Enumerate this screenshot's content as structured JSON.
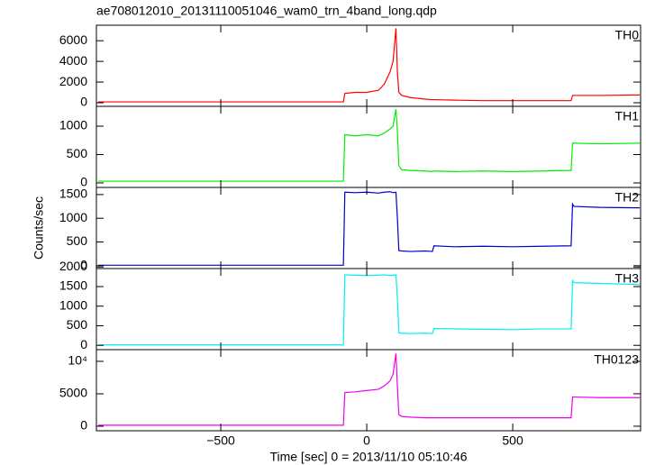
{
  "chart_data": [
    {
      "type": "line",
      "title": "ae708012010_20131110051046_wam0_trn_4band_long.qdp",
      "x": [
        -920,
        -80,
        -75,
        -40,
        0,
        40,
        60,
        80,
        90,
        100,
        105,
        110,
        120,
        150,
        200,
        225,
        230,
        300,
        400,
        500,
        600,
        700,
        705,
        710,
        800,
        935
      ],
      "series": [
        {
          "name": "TH0",
          "color": "#ff0000",
          "values": [
            80,
            80,
            900,
            1000,
            1000,
            1200,
            1800,
            3000,
            4000,
            7200,
            3000,
            1000,
            700,
            500,
            350,
            300,
            300,
            250,
            200,
            200,
            200,
            200,
            700,
            700,
            700,
            750
          ]
        }
      ],
      "xlim": [
        -926,
        938
      ],
      "ylim": [
        -350,
        7500
      ],
      "yticks": [
        0,
        2000,
        4000,
        6000
      ]
    },
    {
      "type": "line",
      "x": [
        -920,
        -80,
        -75,
        -40,
        0,
        40,
        60,
        80,
        90,
        100,
        105,
        110,
        120,
        150,
        200,
        225,
        230,
        300,
        400,
        500,
        600,
        700,
        705,
        710,
        800,
        935
      ],
      "series": [
        {
          "name": "TH1",
          "color": "#00ee00",
          "values": [
            30,
            30,
            850,
            830,
            850,
            830,
            880,
            950,
            1000,
            1300,
            900,
            300,
            230,
            220,
            210,
            200,
            210,
            200,
            210,
            200,
            210,
            220,
            700,
            700,
            690,
            700
          ]
        }
      ],
      "xlim": [
        -926,
        938
      ],
      "ylim": [
        -80,
        1350
      ],
      "yticks": [
        0,
        500,
        1000
      ]
    },
    {
      "type": "line",
      "y_label": "Counts/sec",
      "x": [
        -920,
        -80,
        -75,
        -40,
        0,
        40,
        60,
        80,
        90,
        100,
        105,
        110,
        120,
        150,
        200,
        225,
        230,
        300,
        400,
        500,
        600,
        700,
        705,
        710,
        800,
        935
      ],
      "series": [
        {
          "name": "TH2",
          "color": "#0000cc",
          "values": [
            10,
            10,
            1550,
            1540,
            1550,
            1530,
            1550,
            1560,
            1540,
            1550,
            1000,
            320,
            310,
            300,
            310,
            300,
            420,
            400,
            410,
            400,
            410,
            420,
            1300,
            1250,
            1230,
            1220
          ]
        }
      ],
      "xlim": [
        -926,
        938
      ],
      "ylim": [
        -60,
        1650
      ],
      "yticks": [
        0,
        500,
        1000,
        1500
      ]
    },
    {
      "type": "line",
      "x": [
        -920,
        -80,
        -75,
        -40,
        0,
        40,
        60,
        80,
        90,
        100,
        105,
        110,
        120,
        150,
        200,
        225,
        230,
        300,
        400,
        500,
        600,
        700,
        705,
        710,
        800,
        935
      ],
      "series": [
        {
          "name": "TH3",
          "color": "#00eeee",
          "values": [
            10,
            10,
            1800,
            1790,
            1780,
            1790,
            1800,
            1780,
            1790,
            1800,
            1200,
            320,
            310,
            300,
            310,
            300,
            430,
            420,
            410,
            400,
            420,
            420,
            1650,
            1600,
            1580,
            1550
          ]
        }
      ],
      "xlim": [
        -926,
        938
      ],
      "ylim": [
        -110,
        1960
      ],
      "yticks": [
        0,
        500,
        1000,
        1500,
        2000
      ]
    },
    {
      "type": "line",
      "x_label": "Time [sec] 0 = 2013/11/10 05:10:46",
      "x": [
        -920,
        -80,
        -75,
        -40,
        0,
        40,
        60,
        80,
        90,
        100,
        105,
        110,
        120,
        150,
        200,
        225,
        230,
        300,
        400,
        500,
        600,
        700,
        705,
        710,
        800,
        935
      ],
      "series": [
        {
          "name": "TH0123",
          "color": "#ee00ee",
          "values": [
            150,
            150,
            5200,
            5300,
            5500,
            5700,
            6200,
            7000,
            8000,
            11200,
            6000,
            1800,
            1500,
            1400,
            1300,
            1300,
            1300,
            1300,
            1300,
            1300,
            1300,
            1300,
            4500,
            4500,
            4400,
            4400
          ]
        }
      ],
      "xlim": [
        -926,
        938
      ],
      "ylim": [
        -700,
        11800
      ],
      "yticks": [
        0,
        5000,
        {
          "value": 10000,
          "label": "10⁴"
        }
      ],
      "xticks": [
        {
          "value": -500,
          "label": "−500"
        },
        0,
        500
      ]
    }
  ]
}
